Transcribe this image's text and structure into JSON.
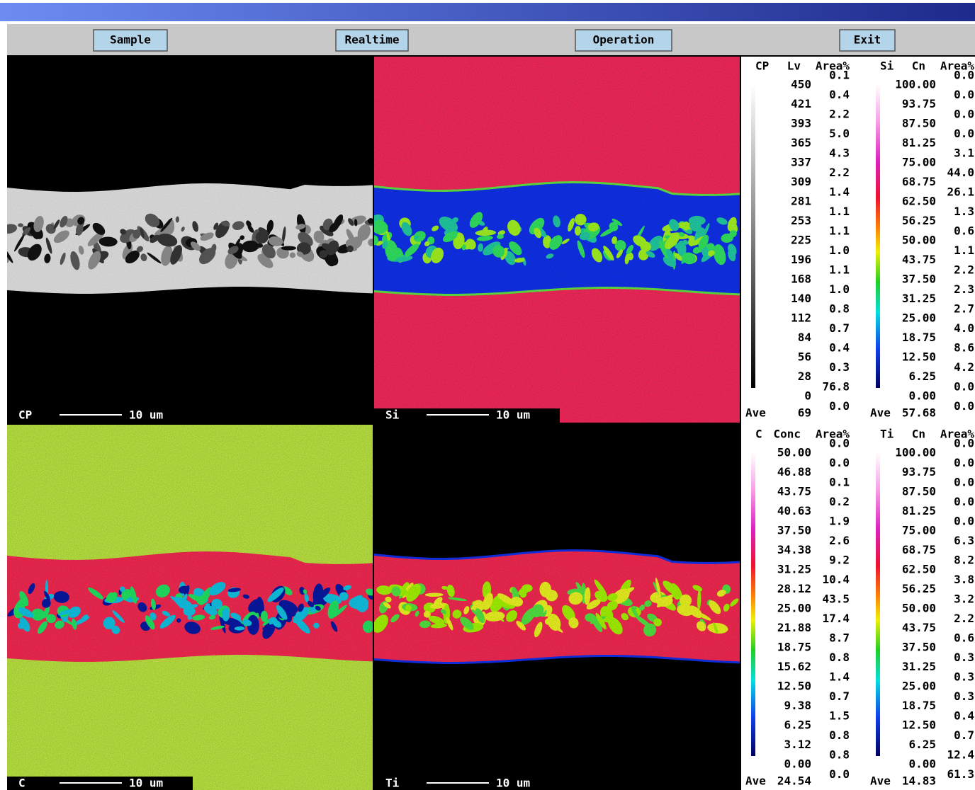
{
  "toolbar": {
    "buttons": [
      "Sample",
      "Realtime",
      "Operation",
      "Exit"
    ]
  },
  "panels": [
    {
      "element": "CP",
      "scale": "10 um"
    },
    {
      "element": "Si",
      "scale": "10 um"
    },
    {
      "element": "C",
      "scale": "10 um"
    },
    {
      "element": "Ti",
      "scale": "10 um"
    }
  ],
  "legends": [
    {
      "header": [
        "CP",
        "Lv",
        "Area%"
      ],
      "levels": [
        "450",
        "421",
        "393",
        "365",
        "337",
        "309",
        "281",
        "253",
        "225",
        "196",
        "168",
        "140",
        "112",
        "84",
        "56",
        "28",
        "0"
      ],
      "area": [
        "0.1",
        "0.4",
        "2.2",
        "5.0",
        "4.3",
        "2.2",
        "1.4",
        "1.1",
        "1.1",
        "1.0",
        "1.1",
        "1.0",
        "0.8",
        "0.7",
        "0.4",
        "0.3",
        "76.8",
        "0.0"
      ],
      "ave_label": "Ave",
      "ave": "69"
    },
    {
      "header": [
        "Si",
        "Cn",
        "Area%"
      ],
      "levels": [
        "100.00",
        "93.75",
        "87.50",
        "81.25",
        "75.00",
        "68.75",
        "62.50",
        "56.25",
        "50.00",
        "43.75",
        "37.50",
        "31.25",
        "25.00",
        "18.75",
        "12.50",
        "6.25",
        "0.00"
      ],
      "area": [
        "0.0",
        "0.0",
        "0.0",
        "0.0",
        "3.1",
        "44.0",
        "26.1",
        "1.3",
        "0.6",
        "1.1",
        "2.2",
        "2.3",
        "2.7",
        "4.0",
        "8.6",
        "4.2",
        "0.0",
        "0.0"
      ],
      "ave_label": "Ave",
      "ave": "57.68"
    },
    {
      "header": [
        "C",
        "Conc",
        "Area%"
      ],
      "levels": [
        "50.00",
        "46.88",
        "43.75",
        "40.63",
        "37.50",
        "34.38",
        "31.25",
        "28.12",
        "25.00",
        "21.88",
        "18.75",
        "15.62",
        "12.50",
        "9.38",
        "6.25",
        "3.12",
        "0.00"
      ],
      "area": [
        "0.0",
        "0.0",
        "0.1",
        "0.2",
        "1.9",
        "2.6",
        "9.2",
        "10.4",
        "43.5",
        "17.4",
        "8.7",
        "0.8",
        "1.4",
        "0.7",
        "1.5",
        "0.8",
        "0.8",
        "0.0"
      ],
      "ave_label": "Ave",
      "ave": "24.54"
    },
    {
      "header": [
        "Ti",
        "Cn",
        "Area%"
      ],
      "levels": [
        "100.00",
        "93.75",
        "87.50",
        "81.25",
        "75.00",
        "68.75",
        "62.50",
        "56.25",
        "50.00",
        "43.75",
        "37.50",
        "31.25",
        "25.00",
        "18.75",
        "12.50",
        "6.25",
        "0.00"
      ],
      "area": [
        "0.0",
        "0.0",
        "0.0",
        "0.0",
        "0.0",
        "6.3",
        "8.2",
        "3.8",
        "3.2",
        "2.2",
        "0.6",
        "0.3",
        "0.3",
        "0.3",
        "0.4",
        "0.7",
        "12.4",
        "61.3"
      ],
      "ave_label": "Ave",
      "ave": "14.83"
    }
  ]
}
